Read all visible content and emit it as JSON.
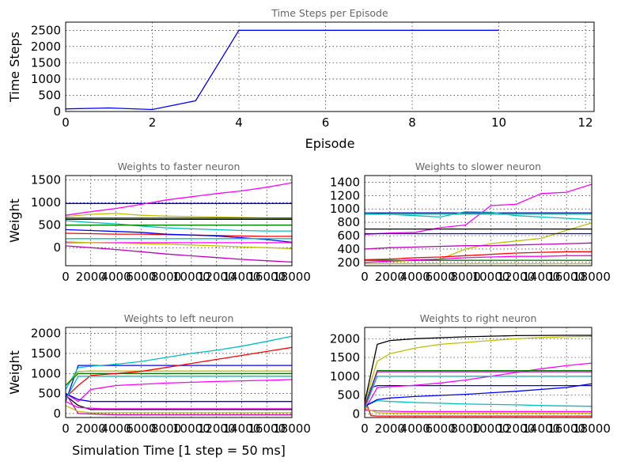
{
  "figure": {
    "xlabel_bottom": "Simulation Time [1 step = 50 ms]"
  },
  "chart_data": [
    {
      "type": "line",
      "title": "Time Steps per Episode",
      "xlabel": "Episode",
      "ylabel": "Time Steps",
      "xlim": [
        0,
        12.2
      ],
      "ylim": [
        0,
        2750
      ],
      "xticks": [
        0,
        2,
        4,
        6,
        8,
        10,
        12
      ],
      "yticks": [
        0,
        500,
        1000,
        1500,
        2000,
        2500
      ],
      "grid": true,
      "colors": [
        "#0000ff"
      ],
      "series": [
        {
          "x": [
            0,
            1,
            2,
            3,
            4,
            5,
            6,
            7,
            8,
            9,
            10
          ],
          "y": [
            80,
            110,
            60,
            330,
            2500,
            2500,
            2500,
            2500,
            2500,
            2500,
            2500
          ]
        }
      ]
    },
    {
      "type": "line",
      "title": "Weights to faster neuron",
      "xlabel": "",
      "ylabel": "Weight",
      "xlim": [
        0,
        18000
      ],
      "ylim": [
        -400,
        1600
      ],
      "xticks": [
        0,
        2000,
        4000,
        6000,
        8000,
        10000,
        12000,
        14000,
        16000,
        18000
      ],
      "yticks": [
        0,
        500,
        1000,
        1500
      ],
      "grid": true,
      "colors": [
        "#0000ff",
        "#ff00ff",
        "#bfbf00",
        "#00bfbf",
        "#008000",
        "#ff0000",
        "#000000",
        "#bf00bf"
      ],
      "series": [
        {
          "x": [
            0,
            18000
          ],
          "y": [
            980,
            980
          ]
        },
        {
          "x": [
            0,
            2000,
            4000,
            6000,
            8000,
            10000,
            12000,
            14000,
            16000,
            18000
          ],
          "y": [
            720,
            800,
            870,
            960,
            1060,
            1130,
            1200,
            1260,
            1340,
            1440
          ]
        },
        {
          "x": [
            0,
            2000,
            4000,
            6000,
            8000,
            10000,
            12000,
            14000,
            16000,
            18000
          ],
          "y": [
            690,
            740,
            760,
            720,
            700,
            690,
            680,
            670,
            660,
            650
          ]
        },
        {
          "x": [
            0,
            2000,
            4000,
            6000,
            8000,
            10000,
            12000,
            14000,
            16000,
            18000
          ],
          "y": [
            600,
            560,
            530,
            480,
            440,
            420,
            400,
            380,
            370,
            370
          ]
        },
        {
          "x": [
            0,
            18000
          ],
          "y": [
            660,
            660
          ]
        },
        {
          "x": [
            0,
            2000,
            4000,
            6000,
            8000,
            10000,
            12000,
            14000,
            16000,
            18000
          ],
          "y": [
            320,
            310,
            300,
            300,
            290,
            280,
            270,
            260,
            250,
            250
          ]
        },
        {
          "x": [
            0,
            18000
          ],
          "y": [
            630,
            630
          ]
        },
        {
          "x": [
            0,
            2000,
            4000,
            6000,
            8000,
            10000,
            12000,
            14000,
            16000,
            18000
          ],
          "y": [
            40,
            0,
            -40,
            -90,
            -140,
            -180,
            -220,
            -260,
            -290,
            -320
          ]
        },
        {
          "x": [
            0,
            2000,
            4000,
            6000,
            8000,
            10000,
            12000,
            14000,
            16000,
            18000
          ],
          "y": [
            400,
            380,
            360,
            340,
            300,
            280,
            260,
            220,
            180,
            120
          ]
        },
        {
          "x": [
            0,
            18000
          ],
          "y": [
            110,
            110
          ]
        },
        {
          "x": [
            0,
            2000,
            4000,
            6000,
            8000,
            10000,
            12000,
            14000,
            16000,
            18000
          ],
          "y": [
            130,
            110,
            100,
            90,
            80,
            60,
            40,
            20,
            0,
            -20
          ]
        },
        {
          "x": [
            0,
            18000
          ],
          "y": [
            200,
            200
          ]
        },
        {
          "x": [
            0,
            18000
          ],
          "y": [
            500,
            500
          ]
        }
      ]
    },
    {
      "type": "line",
      "title": "Weights to slower neuron",
      "xlabel": "",
      "ylabel": "",
      "xlim": [
        0,
        18000
      ],
      "ylim": [
        150,
        1500
      ],
      "xticks": [
        0,
        2000,
        4000,
        6000,
        8000,
        10000,
        12000,
        14000,
        16000,
        18000
      ],
      "yticks": [
        200,
        400,
        600,
        800,
        1000,
        1200,
        1400
      ],
      "grid": true,
      "colors": [
        "#0000ff",
        "#ff00ff",
        "#bfbf00",
        "#00bfbf",
        "#008000",
        "#ff0000",
        "#000000",
        "#bf00bf"
      ],
      "series": [
        {
          "x": [
            0,
            18000
          ],
          "y": [
            940,
            940
          ]
        },
        {
          "x": [
            0,
            2000,
            4000,
            6000,
            8000,
            10000,
            12000,
            14000,
            16000,
            18000
          ],
          "y": [
            620,
            640,
            650,
            720,
            760,
            1050,
            1070,
            1230,
            1250,
            1370
          ]
        },
        {
          "x": [
            0,
            2000,
            4000,
            6000,
            8000,
            10000,
            12000,
            14000,
            16000,
            18000
          ],
          "y": [
            200,
            210,
            230,
            250,
            400,
            480,
            520,
            560,
            680,
            790
          ]
        },
        {
          "x": [
            0,
            2000,
            4000,
            6000,
            8000,
            10000,
            12000,
            14000,
            16000,
            18000
          ],
          "y": [
            930,
            920,
            900,
            880,
            960,
            950,
            900,
            880,
            860,
            840
          ]
        },
        {
          "x": [
            0,
            18000
          ],
          "y": [
            230,
            230
          ]
        },
        {
          "x": [
            0,
            2000,
            4000,
            6000,
            8000,
            10000,
            12000,
            14000,
            16000,
            18000
          ],
          "y": [
            240,
            250,
            270,
            280,
            300,
            320,
            340,
            350,
            360,
            360
          ]
        },
        {
          "x": [
            0,
            18000
          ],
          "y": [
            700,
            700
          ]
        },
        {
          "x": [
            0,
            2000,
            4000,
            6000,
            8000,
            10000,
            12000,
            14000,
            16000,
            18000
          ],
          "y": [
            400,
            420,
            430,
            440,
            450,
            450,
            460,
            470,
            480,
            490
          ]
        },
        {
          "x": [
            0,
            18000
          ],
          "y": [
            630,
            630
          ]
        },
        {
          "x": [
            0,
            2000,
            4000,
            6000,
            8000,
            10000,
            12000,
            14000,
            16000,
            18000
          ],
          "y": [
            200,
            220,
            240,
            250,
            270,
            280,
            290,
            290,
            300,
            300
          ]
        },
        {
          "x": [
            0,
            18000
          ],
          "y": [
            180,
            180
          ]
        },
        {
          "x": [
            0,
            18000
          ],
          "y": [
            920,
            920
          ]
        }
      ]
    },
    {
      "type": "line",
      "title": "Weights to left neuron",
      "xlabel": "",
      "ylabel": "Weight",
      "xlim": [
        0,
        18000
      ],
      "ylim": [
        -100,
        2150
      ],
      "xticks": [
        0,
        2000,
        4000,
        6000,
        8000,
        10000,
        12000,
        14000,
        16000,
        18000
      ],
      "yticks": [
        0,
        500,
        1000,
        1500,
        2000
      ],
      "grid": true,
      "colors": [
        "#0000ff",
        "#ff00ff",
        "#bfbf00",
        "#00bfbf",
        "#008000",
        "#ff0000",
        "#000000",
        "#bf00bf"
      ],
      "series": [
        {
          "x": [
            0,
            1000,
            2000,
            18000
          ],
          "y": [
            300,
            1200,
            1200,
            1200
          ]
        },
        {
          "x": [
            0,
            1000,
            2000,
            4000,
            8000,
            12000,
            16000,
            18000
          ],
          "y": [
            500,
            300,
            600,
            700,
            760,
            800,
            830,
            850
          ]
        },
        {
          "x": [
            0,
            1000,
            2000,
            18000
          ],
          "y": [
            700,
            1050,
            1060,
            1060
          ]
        },
        {
          "x": [
            0,
            1000,
            2000,
            4000,
            6000,
            8000,
            10000,
            12000,
            14000,
            16000,
            18000
          ],
          "y": [
            600,
            1150,
            1180,
            1230,
            1300,
            1400,
            1500,
            1580,
            1680,
            1800,
            1930
          ]
        },
        {
          "x": [
            0,
            1000,
            18000
          ],
          "y": [
            700,
            1000,
            1000
          ]
        },
        {
          "x": [
            0,
            1000,
            2000,
            4000,
            6000,
            8000,
            10000,
            12000,
            14000,
            16000,
            18000
          ],
          "y": [
            400,
            700,
            950,
            1000,
            1050,
            1150,
            1250,
            1350,
            1450,
            1550,
            1650
          ]
        },
        {
          "x": [
            0,
            1000,
            2000,
            18000
          ],
          "y": [
            450,
            200,
            100,
            100
          ]
        },
        {
          "x": [
            0,
            1000,
            4000,
            18000
          ],
          "y": [
            500,
            0,
            -30,
            -30
          ]
        },
        {
          "x": [
            0,
            1000,
            2000,
            18000
          ],
          "y": [
            500,
            350,
            300,
            300
          ]
        },
        {
          "x": [
            0,
            1000,
            3000,
            18000
          ],
          "y": [
            300,
            150,
            120,
            120
          ]
        },
        {
          "x": [
            0,
            1000,
            2000,
            18000
          ],
          "y": [
            200,
            50,
            20,
            20
          ]
        },
        {
          "x": [
            0,
            1000,
            18000
          ],
          "y": [
            350,
            930,
            930
          ]
        }
      ]
    },
    {
      "type": "line",
      "title": "Weights to right neuron",
      "xlabel": "",
      "ylabel": "",
      "xlim": [
        0,
        18000
      ],
      "ylim": [
        -100,
        2300
      ],
      "xticks": [
        0,
        2000,
        4000,
        6000,
        8000,
        10000,
        12000,
        14000,
        16000,
        18000
      ],
      "yticks": [
        0,
        500,
        1000,
        1500,
        2000
      ],
      "grid": true,
      "colors": [
        "#0000ff",
        "#ff00ff",
        "#bfbf00",
        "#00bfbf",
        "#008000",
        "#ff0000",
        "#000000",
        "#bf00bf"
      ],
      "series": [
        {
          "x": [
            0,
            500,
            1000,
            2000,
            18000
          ],
          "y": [
            200,
            700,
            750,
            750,
            750
          ]
        },
        {
          "x": [
            0,
            1000,
            2000,
            4000,
            6000,
            8000,
            10000,
            12000,
            14000,
            16000,
            18000
          ],
          "y": [
            100,
            700,
            720,
            760,
            820,
            900,
            1000,
            1100,
            1200,
            1280,
            1350
          ]
        },
        {
          "x": [
            0,
            1000,
            2000,
            4000,
            6000,
            8000,
            10000,
            12000,
            14000,
            16000,
            18000
          ],
          "y": [
            300,
            1400,
            1600,
            1750,
            1850,
            1900,
            1950,
            2000,
            2030,
            2050,
            2060
          ]
        },
        {
          "x": [
            0,
            1000,
            2000,
            4000,
            6000,
            8000,
            10000,
            12000,
            14000,
            16000,
            18000
          ],
          "y": [
            200,
            350,
            330,
            300,
            280,
            260,
            250,
            240,
            220,
            210,
            200
          ]
        },
        {
          "x": [
            0,
            1000,
            18000
          ],
          "y": [
            200,
            1150,
            1150
          ]
        },
        {
          "x": [
            0,
            500,
            1000,
            18000
          ],
          "y": [
            400,
            -50,
            -60,
            -60
          ]
        },
        {
          "x": [
            0,
            1000,
            2000,
            4000,
            8000,
            12000,
            16000,
            18000
          ],
          "y": [
            300,
            1850,
            1950,
            2000,
            2050,
            2080,
            2090,
            2090
          ]
        },
        {
          "x": [
            0,
            1000,
            18000
          ],
          "y": [
            150,
            1120,
            1120
          ]
        },
        {
          "x": [
            0,
            1000,
            2000,
            4000,
            8000,
            12000,
            16000,
            18000
          ],
          "y": [
            200,
            380,
            420,
            460,
            520,
            600,
            700,
            800
          ]
        },
        {
          "x": [
            0,
            1000,
            3000,
            18000
          ],
          "y": [
            100,
            80,
            60,
            60
          ]
        },
        {
          "x": [
            0,
            1000,
            2000,
            18000
          ],
          "y": [
            150,
            30,
            20,
            20
          ]
        },
        {
          "x": [
            0,
            1000,
            18000
          ],
          "y": [
            120,
            1000,
            1000
          ]
        }
      ]
    }
  ]
}
